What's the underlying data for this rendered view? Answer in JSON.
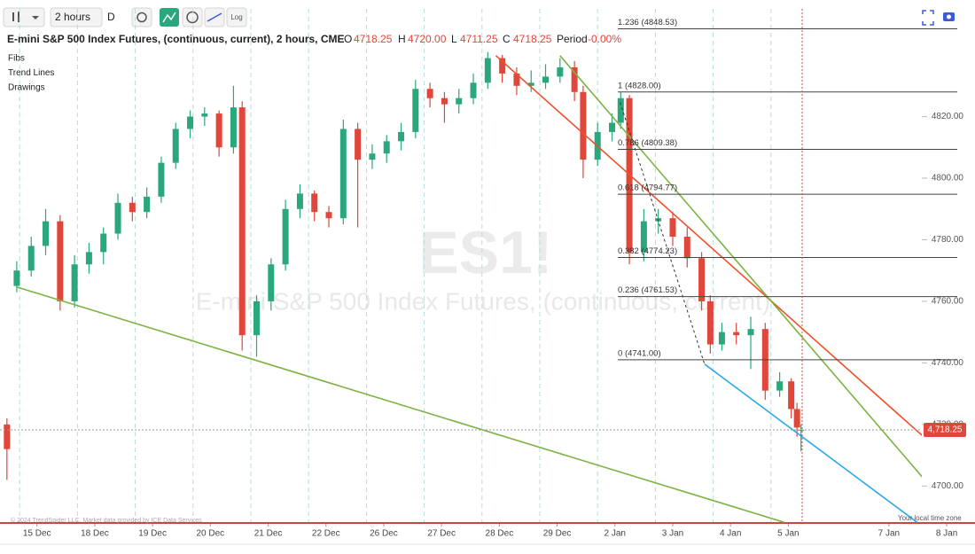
{
  "toolbar": {
    "interval": "2 hours",
    "range": "D",
    "scale": "Log"
  },
  "chart_data": {
    "type": "candlestick",
    "title": "E-mini S&P 500 Index Futures, (continuous, current), 2 hours, CME",
    "ohlc": [
      {
        "label": "O",
        "value": "4718.25"
      },
      {
        "label": "H",
        "value": "4720.00"
      },
      {
        "label": "L",
        "value": "4711.25"
      },
      {
        "label": "C",
        "value": "4718.25"
      },
      {
        "label": "Period",
        "value": "-0.00%"
      }
    ],
    "watermark": "ES1!",
    "watermark_subtitle": "E-mini S&P 500 Index Futures, (continuous, current)",
    "legend_items": [
      "Fibs",
      "Trend Lines",
      "Drawings"
    ],
    "up_color": "#2aa77b",
    "down_color": "#e0463a",
    "candles": {
      "x": [
        -0.52,
        -0.35,
        -0.1,
        0.15,
        0.4,
        0.65,
        0.9,
        1.15,
        1.4,
        1.65,
        1.9,
        2.15,
        2.4,
        2.65,
        2.9,
        3.15,
        3.4,
        3.55,
        3.8,
        4.05,
        4.3,
        4.55,
        4.8,
        5.05,
        5.3,
        5.55,
        5.8,
        6.05,
        6.3,
        6.55,
        6.8,
        7.05,
        7.3,
        7.55,
        7.8,
        8.05,
        8.3,
        8.55,
        8.8,
        9.05,
        9.3,
        9.45,
        9.7,
        9.95,
        10.1,
        10.25,
        10.5,
        10.75,
        11.0,
        11.25,
        11.5,
        11.65,
        11.85,
        12.1,
        12.35,
        12.6,
        12.85,
        13.05,
        13.15,
        13.22
      ],
      "open": [
        4720,
        4765,
        4770,
        4778,
        4786,
        4760,
        4772,
        4776,
        4782,
        4792,
        4789,
        4794,
        4805,
        4816,
        4820,
        4821,
        4810,
        4823,
        4749,
        4760,
        4772,
        4790,
        4795,
        4789,
        4787,
        4816,
        4806,
        4808,
        4812,
        4815,
        4829,
        4826,
        4824,
        4826,
        4831,
        4839,
        4834,
        4830,
        4831,
        4833,
        4836,
        4828,
        4806,
        4815,
        4818,
        4826,
        4776,
        4786,
        4787,
        4781,
        4774,
        4760,
        4746,
        4750,
        4749,
        4751,
        4731,
        4734,
        4725,
        4718.25
      ],
      "high": [
        4722,
        4773,
        4781,
        4790,
        4788,
        4775,
        4779,
        4784,
        4795,
        4794,
        4797,
        4807,
        4818,
        4822,
        4823,
        4822,
        4830,
        4825,
        4762,
        4774,
        4793,
        4798,
        4796,
        4791,
        4819,
        4818,
        4811,
        4814,
        4818,
        4832,
        4831,
        4828,
        4829,
        4834,
        4841,
        4840,
        4836,
        4835,
        4837,
        4839,
        4838,
        4830,
        4818,
        4821,
        4828,
        4827,
        4790,
        4790,
        4789,
        4784,
        4776,
        4762,
        4753,
        4753,
        4755,
        4753,
        4737,
        4735,
        4727,
        4720
      ],
      "low": [
        4702,
        4763,
        4768,
        4775,
        4757,
        4758,
        4769,
        4772,
        4780,
        4786,
        4787,
        4792,
        4803,
        4813,
        4817,
        4807,
        4808,
        4744,
        4742,
        4757,
        4770,
        4787,
        4786,
        4784,
        4785,
        4784,
        4803,
        4805,
        4809,
        4813,
        4823,
        4818,
        4821,
        4824,
        4829,
        4831,
        4827,
        4828,
        4829,
        4831,
        4825,
        4800,
        4804,
        4812,
        4816,
        4772,
        4773,
        4782,
        4778,
        4771,
        4757,
        4743,
        4744,
        4746,
        4738,
        4728,
        4729,
        4722,
        4716,
        4711.25
      ],
      "close": [
        4712,
        4770,
        4778,
        4786,
        4760,
        4772,
        4776,
        4782,
        4792,
        4789,
        4794,
        4805,
        4816,
        4820,
        4821,
        4810,
        4823,
        4749,
        4760,
        4772,
        4790,
        4795,
        4789,
        4787,
        4816,
        4806,
        4808,
        4812,
        4815,
        4829,
        4826,
        4824,
        4826,
        4831,
        4839,
        4834,
        4830,
        4831,
        4833,
        4836,
        4828,
        4806,
        4815,
        4818,
        4826,
        4776,
        4786,
        4787,
        4781,
        4774,
        4760,
        4746,
        4750,
        4749,
        4751,
        4731,
        4734,
        4725,
        4719,
        4718.25
      ]
    },
    "xlim": [
      -0.64,
      16.23
    ],
    "xticks": [
      {
        "value": 0,
        "label": "15 Dec"
      },
      {
        "value": 1,
        "label": "18 Dec"
      },
      {
        "value": 2,
        "label": "19 Dec"
      },
      {
        "value": 3,
        "label": "20 Dec"
      },
      {
        "value": 4,
        "label": "21 Dec"
      },
      {
        "value": 5,
        "label": "22 Dec"
      },
      {
        "value": 6,
        "label": "26 Dec"
      },
      {
        "value": 7,
        "label": "27 Dec"
      },
      {
        "value": 8,
        "label": "28 Dec"
      },
      {
        "value": 9,
        "label": "29 Dec"
      },
      {
        "value": 10,
        "label": "2 Jan"
      },
      {
        "value": 11,
        "label": "3 Jan"
      },
      {
        "value": 12,
        "label": "4 Jan"
      },
      {
        "value": 13,
        "label": "5 Jan"
      },
      {
        "value": 14.74,
        "label": "7 Jan"
      },
      {
        "value": 15.74,
        "label": "8 Jan"
      }
    ],
    "ylim": [
      4688,
      4855
    ],
    "yticks": [
      {
        "value": 4700,
        "label": "4700.00"
      },
      {
        "value": 4720,
        "label": "4720.00"
      },
      {
        "value": 4740,
        "label": "4740.00"
      },
      {
        "value": 4760,
        "label": "4760.00"
      },
      {
        "value": 4780,
        "label": "4780.00"
      },
      {
        "value": 4800,
        "label": "4800.00"
      },
      {
        "value": 4820,
        "label": "4820.00"
      }
    ],
    "last_price": {
      "value": 4718.25,
      "label": "4,718.25"
    },
    "fib_start_x": 10.05,
    "fib_levels": [
      {
        "value": 4848.53,
        "label": "1.236 (4848.53)"
      },
      {
        "value": 4828,
        "label": "1 (4828.00)"
      },
      {
        "value": 4809.38,
        "label": "0.786 (4809.38)"
      },
      {
        "value": 4794.77,
        "label": "0.618 (4794.77)"
      },
      {
        "value": 4774.23,
        "label": "0.382 (4774.23)"
      },
      {
        "value": 4761.53,
        "label": "0.236 (4761.53)"
      },
      {
        "value": 4741,
        "label": "0 (4741.00)"
      }
    ],
    "trend_lines": [
      {
        "color": "#7cb342",
        "x": [
          -0.34,
          12.93
        ],
        "y": [
          4764.6,
          4688.2
        ]
      },
      {
        "color": "#29a9e8",
        "x": [
          11.55,
          15.23
        ],
        "y": [
          4739.6,
          4688.2
        ]
      },
      {
        "color": "#f0502a",
        "x": [
          7.94,
          15.92
        ],
        "y": [
          4839.8,
          4706.3
        ]
      },
      {
        "color": "#7cb342",
        "x": [
          9.05,
          15.92
        ],
        "y": [
          4839.8,
          4689.8
        ]
      },
      {
        "color": "#333333",
        "dashed": true,
        "x": [
          10.09,
          11.55
        ],
        "y": [
          4824.6,
          4739.6
        ]
      }
    ],
    "copyright": "© 2024 TrendSpider LLC. Market data provided by ICE Data Services",
    "timezone_note": "Your local time zone"
  }
}
